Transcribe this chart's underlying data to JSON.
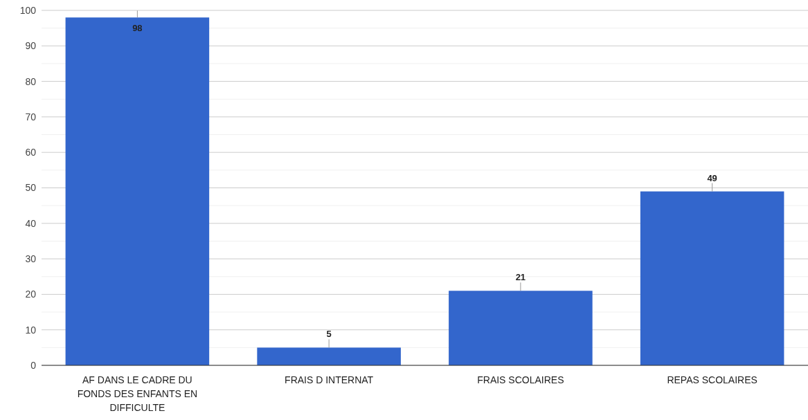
{
  "chart_data": {
    "type": "bar",
    "categories": [
      "AF DANS LE CADRE DU FONDS DES ENFANTS EN DIFFICULTE",
      "FRAIS D INTERNAT",
      "FRAIS SCOLAIRES",
      "REPAS SCOLAIRES"
    ],
    "values": [
      98,
      5,
      21,
      49
    ],
    "color": "#3366cc",
    "ylim": [
      0,
      100
    ],
    "yticks": [
      0,
      {
        "value": 5,
        "label": null
      },
      10,
      {
        "value": 15,
        "label": null
      },
      20,
      {
        "value": 25,
        "label": null
      },
      30,
      {
        "value": 35,
        "label": null
      },
      40,
      {
        "value": 45,
        "label": null
      },
      50,
      {
        "value": 55,
        "label": null
      },
      60,
      {
        "value": 65,
        "label": null
      },
      70,
      {
        "value": 75,
        "label": null
      },
      80,
      {
        "value": 85,
        "label": null
      },
      90,
      {
        "value": 95,
        "label": null
      },
      100
    ],
    "grid": true,
    "data_labels": true
  }
}
